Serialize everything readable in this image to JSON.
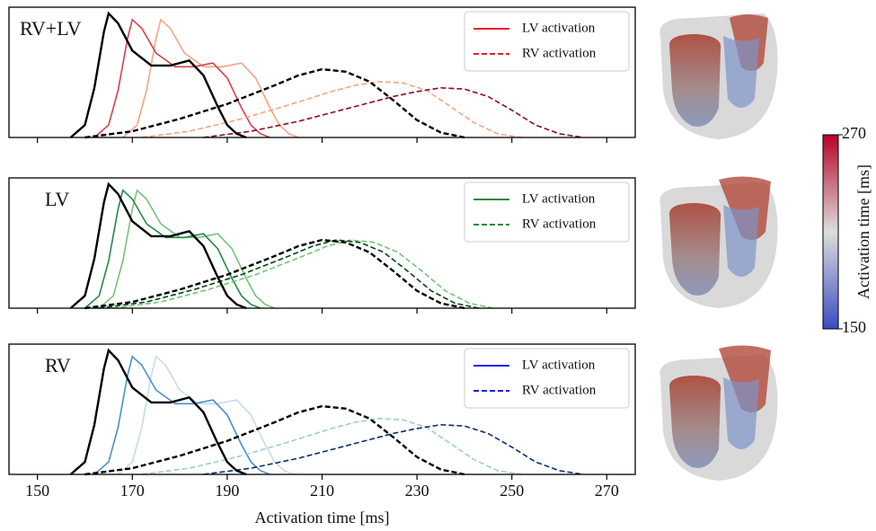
{
  "chart_data": [
    {
      "type": "line",
      "label": "RV+LV",
      "xlim": [
        144,
        276
      ],
      "xticks": [
        150,
        170,
        190,
        210,
        230,
        250,
        270
      ],
      "show_xtick_labels": false,
      "ylim": [
        0,
        1.05
      ],
      "legend": [
        {
          "name": "LV activation",
          "color": "#e8202a",
          "style": "solid"
        },
        {
          "name": "RV activation",
          "color": "#e8202a",
          "style": "dashed"
        }
      ],
      "series": [
        {
          "color": "#f4a582",
          "style": "solid",
          "x": [
            168,
            171,
            173,
            175,
            176,
            178,
            181,
            185,
            189,
            193,
            196,
            199,
            201,
            203,
            205
          ],
          "values": [
            0,
            0.1,
            0.38,
            0.8,
            0.95,
            0.88,
            0.68,
            0.57,
            0.57,
            0.6,
            0.48,
            0.24,
            0.1,
            0.03,
            0
          ]
        },
        {
          "color": "#d6404a",
          "style": "solid",
          "x": [
            162,
            165,
            167,
            169,
            170,
            172,
            175,
            179,
            183,
            187,
            190,
            193,
            195,
            197,
            199
          ],
          "values": [
            0,
            0.1,
            0.38,
            0.8,
            0.95,
            0.88,
            0.68,
            0.57,
            0.57,
            0.6,
            0.48,
            0.24,
            0.1,
            0.03,
            0
          ]
        },
        {
          "color": "#f4a582",
          "style": "dashed",
          "x": [
            172,
            182,
            192,
            202,
            212,
            217,
            222,
            227,
            232,
            237,
            242,
            247,
            252
          ],
          "values": [
            0,
            0.05,
            0.14,
            0.25,
            0.37,
            0.42,
            0.45,
            0.44,
            0.38,
            0.25,
            0.12,
            0.03,
            0
          ]
        },
        {
          "color": "#8b0c1b",
          "style": "dashed",
          "x": [
            185,
            195,
            205,
            215,
            225,
            230,
            235,
            240,
            245,
            250,
            255,
            260,
            265
          ],
          "values": [
            0,
            0.05,
            0.13,
            0.23,
            0.33,
            0.37,
            0.4,
            0.39,
            0.33,
            0.22,
            0.1,
            0.03,
            0
          ]
        },
        {
          "color": "#000000",
          "style": "solid",
          "x": [
            157,
            160,
            162,
            164,
            165,
            167,
            170,
            174,
            178,
            182,
            185,
            188,
            190,
            192,
            194
          ],
          "values": [
            0,
            0.1,
            0.4,
            0.85,
            1,
            0.92,
            0.7,
            0.58,
            0.58,
            0.62,
            0.5,
            0.25,
            0.1,
            0.03,
            0
          ]
        },
        {
          "color": "#000000",
          "style": "dashed",
          "x": [
            160,
            170,
            180,
            190,
            200,
            205,
            210,
            215,
            220,
            225,
            230,
            235,
            240
          ],
          "values": [
            0,
            0.05,
            0.15,
            0.27,
            0.42,
            0.5,
            0.55,
            0.53,
            0.45,
            0.3,
            0.14,
            0.04,
            0
          ]
        }
      ]
    },
    {
      "type": "line",
      "label": "LV",
      "xlim": [
        144,
        276
      ],
      "xticks": [
        150,
        170,
        190,
        210,
        230,
        250,
        270
      ],
      "show_xtick_labels": false,
      "ylim": [
        0,
        1.05
      ],
      "legend": [
        {
          "name": "LV activation",
          "color": "#2a8a3a",
          "style": "solid"
        },
        {
          "name": "RV activation",
          "color": "#2a8a3a",
          "style": "dashed"
        }
      ],
      "series": [
        {
          "color": "#74c476",
          "style": "solid",
          "x": [
            163,
            166,
            168,
            170,
            171,
            173,
            176,
            180,
            184,
            188,
            191,
            194,
            196,
            198,
            200
          ],
          "values": [
            0,
            0.1,
            0.38,
            0.8,
            0.95,
            0.88,
            0.68,
            0.57,
            0.57,
            0.6,
            0.48,
            0.24,
            0.1,
            0.03,
            0
          ]
        },
        {
          "color": "#238b45",
          "style": "solid",
          "x": [
            160,
            163,
            165,
            167,
            168,
            170,
            173,
            177,
            181,
            185,
            188,
            191,
            193,
            195,
            197
          ],
          "values": [
            0,
            0.1,
            0.38,
            0.8,
            0.95,
            0.88,
            0.68,
            0.57,
            0.57,
            0.6,
            0.48,
            0.24,
            0.1,
            0.03,
            0
          ]
        },
        {
          "color": "#74c476",
          "style": "dashed",
          "x": [
            166,
            176,
            186,
            196,
            206,
            211,
            216,
            221,
            226,
            231,
            236,
            241,
            246
          ],
          "values": [
            0,
            0.05,
            0.15,
            0.27,
            0.42,
            0.5,
            0.55,
            0.53,
            0.45,
            0.3,
            0.14,
            0.04,
            0
          ]
        },
        {
          "color": "#00441b",
          "style": "dashed",
          "x": [
            163,
            173,
            183,
            193,
            203,
            208,
            213,
            218,
            223,
            228,
            233,
            238,
            243
          ],
          "values": [
            0,
            0.05,
            0.15,
            0.27,
            0.42,
            0.5,
            0.55,
            0.53,
            0.45,
            0.3,
            0.14,
            0.04,
            0
          ]
        },
        {
          "color": "#000000",
          "style": "solid",
          "x": [
            157,
            160,
            162,
            164,
            165,
            167,
            170,
            174,
            178,
            182,
            185,
            188,
            190,
            192,
            194
          ],
          "values": [
            0,
            0.1,
            0.4,
            0.85,
            1,
            0.92,
            0.7,
            0.58,
            0.58,
            0.62,
            0.5,
            0.25,
            0.1,
            0.03,
            0
          ]
        },
        {
          "color": "#000000",
          "style": "dashed",
          "x": [
            160,
            170,
            180,
            190,
            200,
            205,
            210,
            215,
            220,
            225,
            230,
            235,
            240
          ],
          "values": [
            0,
            0.05,
            0.15,
            0.27,
            0.42,
            0.5,
            0.55,
            0.53,
            0.45,
            0.3,
            0.14,
            0.04,
            0
          ]
        }
      ]
    },
    {
      "type": "line",
      "label": "RV",
      "xlim": [
        144,
        276
      ],
      "xticks": [
        150,
        170,
        190,
        210,
        230,
        250,
        270
      ],
      "show_xtick_labels": true,
      "xlabel": "Activation time [ms]",
      "ylim": [
        0,
        1.05
      ],
      "legend": [
        {
          "name": "LV activation",
          "color": "#1a1aee",
          "style": "solid"
        },
        {
          "name": "RV activation",
          "color": "#1a1aee",
          "style": "dashed"
        }
      ],
      "series": [
        {
          "color": "#c6dbef",
          "style": "solid",
          "x": [
            167,
            170,
            172,
            174,
            175,
            177,
            180,
            184,
            188,
            192,
            195,
            198,
            200,
            202,
            204
          ],
          "values": [
            0,
            0.1,
            0.38,
            0.8,
            0.95,
            0.88,
            0.68,
            0.57,
            0.57,
            0.6,
            0.48,
            0.24,
            0.1,
            0.03,
            0
          ]
        },
        {
          "color": "#4a90c8",
          "style": "solid",
          "x": [
            162,
            165,
            167,
            169,
            170,
            172,
            175,
            179,
            183,
            187,
            190,
            193,
            195,
            197,
            199
          ],
          "values": [
            0,
            0.1,
            0.38,
            0.8,
            0.95,
            0.88,
            0.68,
            0.57,
            0.57,
            0.6,
            0.48,
            0.24,
            0.1,
            0.03,
            0
          ]
        },
        {
          "color": "#9ecae1",
          "style": "dashed",
          "x": [
            172,
            182,
            192,
            202,
            212,
            217,
            222,
            227,
            232,
            237,
            242,
            247,
            252
          ],
          "values": [
            0,
            0.05,
            0.14,
            0.25,
            0.37,
            0.42,
            0.45,
            0.44,
            0.38,
            0.25,
            0.12,
            0.03,
            0
          ]
        },
        {
          "color": "#08306b",
          "style": "dashed",
          "x": [
            185,
            195,
            205,
            215,
            225,
            230,
            235,
            240,
            245,
            250,
            255,
            260,
            265
          ],
          "values": [
            0,
            0.05,
            0.13,
            0.23,
            0.33,
            0.37,
            0.4,
            0.39,
            0.33,
            0.22,
            0.1,
            0.03,
            0
          ]
        },
        {
          "color": "#000000",
          "style": "solid",
          "x": [
            157,
            160,
            162,
            164,
            165,
            167,
            170,
            174,
            178,
            182,
            185,
            188,
            190,
            192,
            194
          ],
          "values": [
            0,
            0.1,
            0.4,
            0.85,
            1,
            0.92,
            0.7,
            0.58,
            0.58,
            0.62,
            0.5,
            0.25,
            0.1,
            0.03,
            0
          ]
        },
        {
          "color": "#000000",
          "style": "dashed",
          "x": [
            160,
            170,
            180,
            190,
            200,
            205,
            210,
            215,
            220,
            225,
            230,
            235,
            240
          ],
          "values": [
            0,
            0.05,
            0.15,
            0.27,
            0.42,
            0.5,
            0.55,
            0.53,
            0.45,
            0.3,
            0.14,
            0.04,
            0
          ]
        }
      ]
    }
  ],
  "colorbar": {
    "lim": [
      150,
      270
    ],
    "ticks": [
      150,
      270
    ],
    "label": "Activation time [ms]",
    "colors": [
      "#3b4cc0",
      "#dddddd",
      "#b40426"
    ]
  }
}
